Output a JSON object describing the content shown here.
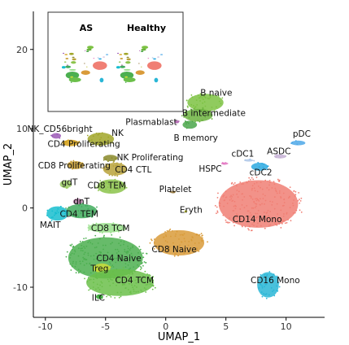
{
  "chart_data": {
    "type": "scatter",
    "xlabel": "UMAP_1",
    "ylabel": "UMAP_2",
    "xlim": [
      -11,
      13.2
    ],
    "ylim": [
      -13.8,
      24.8
    ],
    "x_ticks": [
      -10,
      -5,
      0,
      5,
      10
    ],
    "y_ticks": [
      -10,
      0,
      10,
      20
    ],
    "clusters": [
      {
        "name": "B naive",
        "x": 3.3,
        "y": 13.3,
        "rx": 1.5,
        "ry": 1.1,
        "color": "#7cc242",
        "label_x": 4.2,
        "label_y": 14.5
      },
      {
        "name": "B intermediate",
        "x": 2.7,
        "y": 11.7,
        "rx": 1.2,
        "ry": 0.8,
        "color": "#6cb33f",
        "label_x": 4.0,
        "label_y": 11.9
      },
      {
        "name": "B memory",
        "x": 2.0,
        "y": 10.5,
        "rx": 0.6,
        "ry": 0.5,
        "color": "#4aa64a",
        "label_x": 2.5,
        "label_y": 8.8
      },
      {
        "name": "Plasmablast",
        "x": 0.9,
        "y": 10.9,
        "rx": 0.2,
        "ry": 0.2,
        "color": "#b266b2",
        "label_x": -1.2,
        "label_y": 10.8
      },
      {
        "name": "NK_CD56bright",
        "x": -9.1,
        "y": 9.1,
        "rx": 0.4,
        "ry": 0.35,
        "color": "#9b59b6",
        "label_x": -8.8,
        "label_y": 9.9
      },
      {
        "name": "NK",
        "x": -5.4,
        "y": 8.7,
        "rx": 1.1,
        "ry": 0.8,
        "color": "#a1a629",
        "label_x": -4.0,
        "label_y": 9.4
      },
      {
        "name": "CD4 Proliferating",
        "x": -7.9,
        "y": 8.2,
        "rx": 0.7,
        "ry": 0.4,
        "color": "#d4a017",
        "label_x": -6.8,
        "label_y": 8.0
      },
      {
        "name": "NK Proliferating",
        "x": -4.6,
        "y": 6.3,
        "rx": 0.6,
        "ry": 0.4,
        "color": "#8a8a2a",
        "label_x": -1.3,
        "label_y": 6.3
      },
      {
        "name": "CD8 Proliferating",
        "x": -7.5,
        "y": 5.4,
        "rx": 0.7,
        "ry": 0.5,
        "color": "#c49a2c",
        "label_x": -7.6,
        "label_y": 5.3
      },
      {
        "name": "CD4 CTL",
        "x": -4.2,
        "y": 4.9,
        "rx": 1.0,
        "ry": 0.8,
        "color": "#b8a23a",
        "label_x": -2.7,
        "label_y": 4.8
      },
      {
        "name": "HSPC",
        "x": 4.9,
        "y": 5.6,
        "rx": 0.3,
        "ry": 0.15,
        "color": "#e377c2",
        "label_x": 3.7,
        "label_y": 4.9
      },
      {
        "name": "cDC1",
        "x": 6.9,
        "y": 6.0,
        "rx": 0.4,
        "ry": 0.15,
        "color": "#aec7e8",
        "label_x": 6.4,
        "label_y": 6.8
      },
      {
        "name": "ASDC",
        "x": 9.5,
        "y": 6.5,
        "rx": 0.5,
        "ry": 0.25,
        "color": "#c5b0d5",
        "label_x": 9.4,
        "label_y": 7.1
      },
      {
        "name": "pDC",
        "x": 11.0,
        "y": 8.2,
        "rx": 0.6,
        "ry": 0.3,
        "color": "#4ea8e8",
        "label_x": 11.3,
        "label_y": 9.3
      },
      {
        "name": "cDC2",
        "x": 7.8,
        "y": 5.2,
        "rx": 0.7,
        "ry": 0.5,
        "color": "#2ca9e1",
        "label_x": 7.9,
        "label_y": 4.4
      },
      {
        "name": "CD8 TEM",
        "x": -4.5,
        "y": 2.7,
        "rx": 1.2,
        "ry": 0.9,
        "color": "#8bc34a",
        "label_x": -4.9,
        "label_y": 2.8
      },
      {
        "name": "gdT",
        "x": -8.3,
        "y": 3.0,
        "rx": 0.5,
        "ry": 0.5,
        "color": "#9ccc65",
        "label_x": -8.0,
        "label_y": 3.2
      },
      {
        "name": "dnT",
        "x": -7.3,
        "y": 0.8,
        "rx": 0.4,
        "ry": 0.4,
        "color": "#b07aa1",
        "label_x": -7.0,
        "label_y": 0.8
      },
      {
        "name": "Platelet",
        "x": 0.6,
        "y": 2.0,
        "rx": 0.2,
        "ry": 0.15,
        "color": "#8c6d31",
        "label_x": 0.8,
        "label_y": 2.3
      },
      {
        "name": "Eryth",
        "x": 1.7,
        "y": -0.4,
        "rx": 0.1,
        "ry": 0.1,
        "color": "#bcbd22",
        "label_x": 2.1,
        "label_y": -0.3
      },
      {
        "name": "CD4 TEM",
        "x": -7.0,
        "y": -0.4,
        "rx": 1.3,
        "ry": 0.9,
        "color": "#41ab5d",
        "label_x": -7.2,
        "label_y": -0.8
      },
      {
        "name": "MAIT",
        "x": -9.0,
        "y": -0.7,
        "rx": 0.9,
        "ry": 0.9,
        "color": "#17becf",
        "label_x": -9.6,
        "label_y": -2.2
      },
      {
        "name": "CD8 TCM",
        "x": -4.9,
        "y": -2.5,
        "rx": 1.6,
        "ry": 0.6,
        "color": "#98df8a",
        "label_x": -4.6,
        "label_y": -2.6
      },
      {
        "name": "CD8 Naive",
        "x": 1.1,
        "y": -4.4,
        "rx": 2.1,
        "ry": 1.6,
        "color": "#d99b3a",
        "label_x": 0.7,
        "label_y": -5.3
      },
      {
        "name": "CD4 Naive",
        "x": -5.0,
        "y": -6.3,
        "rx": 3.1,
        "ry": 2.6,
        "color": "#4caf50",
        "label_x": -3.9,
        "label_y": -6.4
      },
      {
        "name": "Treg",
        "x": -5.3,
        "y": -7.6,
        "rx": 0.7,
        "ry": 0.6,
        "color": "#cddc39",
        "label_x": -5.5,
        "label_y": -7.7
      },
      {
        "name": "CD4 TCM",
        "x": -3.8,
        "y": -9.4,
        "rx": 2.8,
        "ry": 1.7,
        "color": "#6bbf4a",
        "label_x": -2.6,
        "label_y": -9.2
      },
      {
        "name": "ILC",
        "x": -5.5,
        "y": -11.2,
        "rx": 0.3,
        "ry": 0.3,
        "color": "#2ca02c",
        "label_x": -5.6,
        "label_y": -11.4
      },
      {
        "name": "CD14 Mono",
        "x": 7.7,
        "y": 0.5,
        "rx": 3.3,
        "ry": 3.0,
        "color": "#f07f74",
        "label_x": 7.6,
        "label_y": -1.5
      },
      {
        "name": "CD16 Mono",
        "x": 8.5,
        "y": -9.7,
        "rx": 0.9,
        "ry": 1.6,
        "color": "#29b6d6",
        "label_x": 9.1,
        "label_y": -9.2
      }
    ],
    "inset": {
      "panels": [
        {
          "title": "AS",
          "x": 36.2,
          "y": 8.8
        },
        {
          "title": "Healthy",
          "x": 36.7,
          "y": 8.8
        }
      ]
    }
  }
}
